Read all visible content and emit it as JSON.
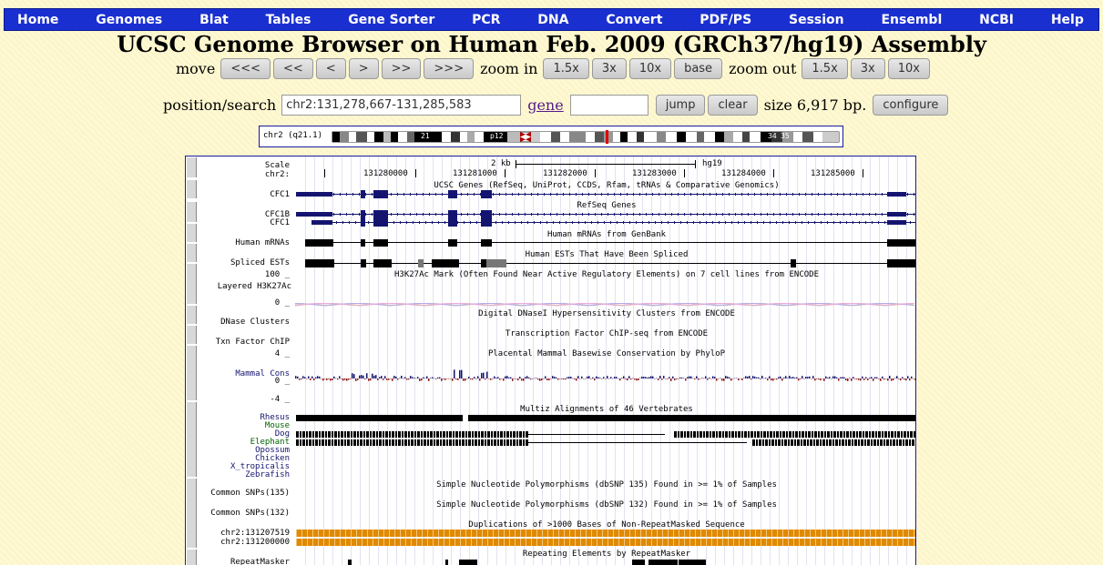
{
  "nav": {
    "items": [
      "Home",
      "Genomes",
      "Blat",
      "Tables",
      "Gene Sorter",
      "PCR",
      "DNA",
      "Convert",
      "PDF/PS",
      "Session",
      "Ensembl",
      "NCBI",
      "Help"
    ]
  },
  "title": "UCSC Genome Browser on Human Feb. 2009 (GRCh37/hg19) Assembly",
  "move": {
    "label": "move",
    "buttons": [
      "<<<",
      "<<",
      "<",
      ">",
      ">>",
      ">>>"
    ],
    "zoom_in_label": "zoom in",
    "zoom_in": [
      "1.5x",
      "3x",
      "10x",
      "base"
    ],
    "zoom_out_label": "zoom out",
    "zoom_out": [
      "1.5x",
      "3x",
      "10x"
    ]
  },
  "position": {
    "label": "position/search",
    "value": "chr2:131,278,667-131,285,583",
    "gene_label": "gene",
    "gene_value": "",
    "jump": "jump",
    "clear": "clear",
    "size": "size 6,917 bp.",
    "configure": "configure"
  },
  "ideogram": {
    "chrom_label": "chr2 (q21.1)",
    "band_labels": [
      "21",
      "p12",
      "34",
      "35"
    ]
  },
  "scale": {
    "label": "Scale",
    "bar": "2 kb",
    "assembly": "hg19",
    "chrom": "chr2:",
    "ticks": [
      "131280000",
      "131281000",
      "131282000",
      "131283000",
      "131284000",
      "131285000"
    ]
  },
  "tracks": [
    {
      "title": "UCSC Genes (RefSeq, UniProt, CCDS, Rfam, tRNAs & Comparative Genomics)",
      "names": [
        "CFC1"
      ]
    },
    {
      "title": "RefSeq Genes",
      "names": [
        "CFC1B",
        "CFC1"
      ]
    },
    {
      "title": "Human mRNAs from GenBank",
      "names": [
        "Human mRNAs"
      ]
    },
    {
      "title": "Human ESTs That Have Been Spliced",
      "names": [
        "Spliced ESTs"
      ]
    },
    {
      "title": "H3K27Ac Mark (Often Found Near Active Regulatory Elements) on 7 cell lines from ENCODE",
      "names": [
        "Layered H3K27Ac"
      ],
      "ymax": "100 _",
      "ymin": "0 _"
    },
    {
      "title": "Digital DNaseI Hypersensitivity Clusters from ENCODE",
      "names": [
        "DNase Clusters"
      ]
    },
    {
      "title": "Transcription Factor ChIP-seq from ENCODE",
      "names": [
        "Txn Factor ChIP"
      ]
    },
    {
      "title": "Placental Mammal Basewise Conservation by PhyloP",
      "names": [
        "Mammal Cons"
      ],
      "ymax": "4 _",
      "ymid": "0 _",
      "ymin": "-4 _"
    },
    {
      "title": "Multiz Alignments of 46 Vertebrates",
      "names": [
        "Rhesus",
        "Mouse",
        "Dog",
        "Elephant",
        "Opossum",
        "Chicken",
        "X_tropicalis",
        "Zebrafish"
      ]
    },
    {
      "title": "Simple Nucleotide Polymorphisms (dbSNP 135) Found in >= 1% of Samples",
      "names": [
        "Common SNPs(135)"
      ]
    },
    {
      "title": "Simple Nucleotide Polymorphisms (dbSNP 132) Found in >= 1% of Samples",
      "names": [
        "Common SNPs(132)"
      ]
    },
    {
      "title": "Duplications of >1000 Bases of Non-RepeatMasked Sequence",
      "names": [
        "chr2:131207519",
        "chr2:131200000"
      ]
    },
    {
      "title": "Repeating Elements by RepeatMasker",
      "names": [
        "RepeatMasker"
      ]
    }
  ],
  "colors": {
    "nav_bg": "#1A2FD0",
    "gene": "#141470",
    "dup": "#E08A00",
    "mouse_label": "#006400"
  }
}
